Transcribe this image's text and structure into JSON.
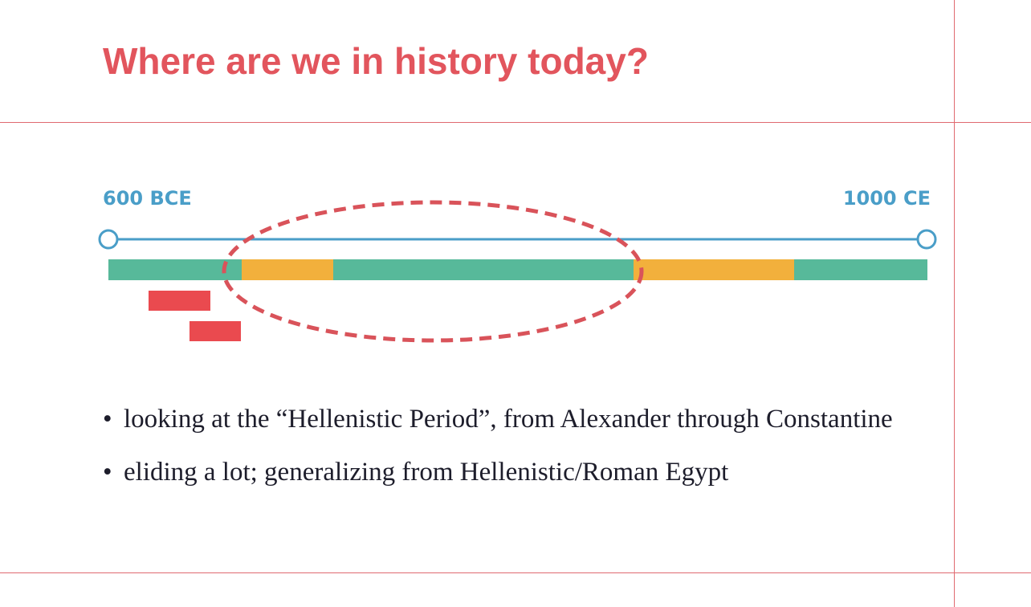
{
  "slide": {
    "title": "Where are we in history today?",
    "colors": {
      "title": "#e2555d",
      "rules": "#e06a70",
      "timeline_line": "#4a9ec8",
      "bar_green": "#57b99a",
      "bar_orange": "#f2b03c",
      "bar_red": "#ea4a4f",
      "ellipse": "#d9535a",
      "body_text": "#1d1d2b"
    }
  },
  "timeline": {
    "start_label": "600 BCE",
    "end_label": "1000 CE",
    "start_marker_icon": "hollow-circle-icon",
    "end_marker_icon": "hollow-circle-icon"
  },
  "bullets": [
    {
      "marker": "•",
      "text": "looking at the “Hellenistic Period”, from Alexander through Constantine"
    },
    {
      "marker": "•",
      "text": "eliding a lot; generalizing from Hellenistic/Roman Egypt"
    }
  ]
}
